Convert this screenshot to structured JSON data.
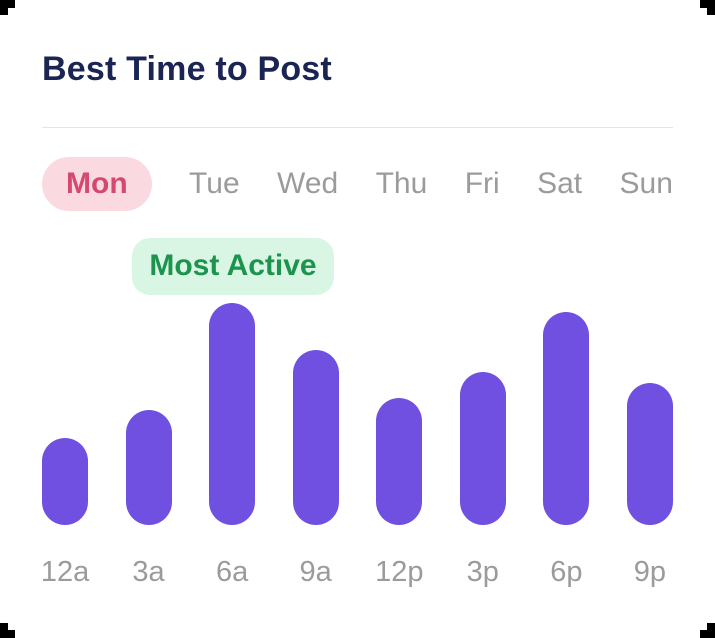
{
  "header": {
    "title": "Best Time to Post"
  },
  "day_tabs": {
    "selected": "Mon",
    "items": [
      {
        "label": "Mon",
        "selected": true
      },
      {
        "label": "Tue",
        "selected": false
      },
      {
        "label": "Wed",
        "selected": false
      },
      {
        "label": "Thu",
        "selected": false
      },
      {
        "label": "Fri",
        "selected": false
      },
      {
        "label": "Sat",
        "selected": false
      },
      {
        "label": "Sun",
        "selected": false
      }
    ]
  },
  "badge": {
    "label": "Most Active"
  },
  "chart_data": {
    "type": "bar",
    "title": "Best Time to Post",
    "selected_day": "Mon",
    "categories": [
      "12a",
      "3a",
      "6a",
      "9a",
      "12p",
      "3p",
      "6p",
      "9p"
    ],
    "values": [
      39,
      52,
      100,
      79,
      57,
      69,
      96,
      64
    ],
    "ylim": [
      0,
      100
    ],
    "grid": false,
    "legend": false,
    "annotations": [
      {
        "text": "Most Active",
        "category": "6a"
      }
    ],
    "bar_color": "#6f50e0"
  },
  "colors": {
    "title_text": "#1a2553",
    "active_tab_bg": "#fbd9e0",
    "active_tab_text": "#d5486f",
    "inactive_tab_text": "#9b9b9b",
    "badge_bg": "#d9f6e4",
    "badge_text": "#1c944d",
    "bar": "#6f50e0",
    "axis_label": "#9b9b9b",
    "divider": "#e5e5e5",
    "background": "#ffffff"
  }
}
